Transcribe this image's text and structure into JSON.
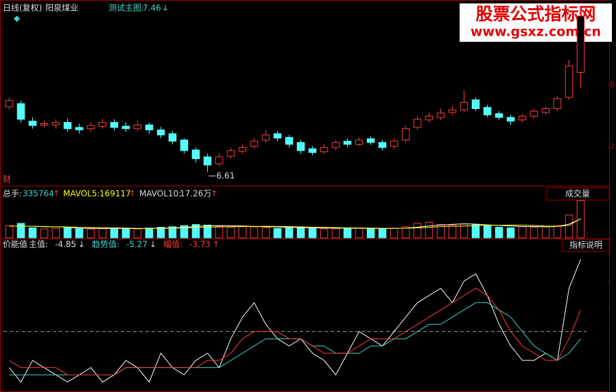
{
  "header": {
    "period": "日线(复权)",
    "stock": "阳泉煤业",
    "badge": "财",
    "vol_button": "成交量",
    "ind_button": "指标说明",
    "up_arrow": "↑",
    "down_arrow": "↓",
    "watermark_cn": "股票公式指标网",
    "watermark_url": "www.gsxz.com.cn"
  },
  "chart_data": [
    {
      "type": "candlestick",
      "title": "测试主图:",
      "current_value": 7.46,
      "up_color": "#ff3c3c",
      "down_color": "#54ffff",
      "open": [
        7.65,
        7.7,
        7.42,
        7.36,
        7.36,
        7.4,
        7.32,
        7.3,
        7.34,
        7.4,
        7.34,
        7.3,
        7.36,
        7.28,
        7.22,
        7.12,
        6.96,
        6.85,
        6.74,
        6.86,
        6.94,
        7.02,
        7.12,
        7.22,
        7.16,
        7.08,
        6.98,
        6.93,
        7.0,
        7.1,
        7.05,
        7.14,
        7.08,
        7.02,
        7.12,
        7.32,
        7.44,
        7.48,
        7.56,
        7.6,
        7.76,
        7.64,
        7.54,
        7.48,
        7.44,
        7.5,
        7.56,
        7.62,
        7.8,
        8.2
      ],
      "close": [
        7.75,
        7.45,
        7.35,
        7.38,
        7.4,
        7.3,
        7.28,
        7.35,
        7.4,
        7.32,
        7.3,
        7.36,
        7.28,
        7.2,
        7.1,
        6.95,
        6.82,
        6.72,
        6.85,
        6.95,
        7.0,
        7.1,
        7.2,
        7.15,
        7.05,
        6.95,
        6.92,
        7.0,
        7.08,
        7.05,
        7.12,
        7.08,
        7.0,
        7.1,
        7.3,
        7.45,
        7.5,
        7.55,
        7.6,
        7.72,
        7.62,
        7.52,
        7.48,
        7.42,
        7.5,
        7.58,
        7.62,
        7.78,
        8.3,
        9.1
      ],
      "high": [
        7.8,
        7.75,
        7.48,
        7.43,
        7.45,
        7.46,
        7.38,
        7.4,
        7.46,
        7.45,
        7.4,
        7.42,
        7.4,
        7.33,
        7.26,
        7.15,
        7.0,
        6.9,
        6.9,
        7.0,
        7.05,
        7.15,
        7.28,
        7.26,
        7.2,
        7.12,
        7.02,
        7.05,
        7.12,
        7.14,
        7.16,
        7.18,
        7.12,
        7.14,
        7.35,
        7.5,
        7.56,
        7.62,
        7.66,
        7.92,
        7.8,
        7.68,
        7.58,
        7.52,
        7.54,
        7.62,
        7.66,
        7.82,
        8.4,
        9.25
      ],
      "low": [
        7.6,
        7.4,
        7.3,
        7.32,
        7.3,
        7.25,
        7.22,
        7.25,
        7.3,
        7.27,
        7.25,
        7.26,
        7.22,
        7.15,
        7.05,
        6.9,
        6.76,
        6.61,
        6.7,
        6.82,
        6.9,
        6.98,
        7.08,
        7.1,
        7.0,
        6.9,
        6.88,
        6.9,
        6.96,
        7.0,
        7.02,
        7.04,
        6.95,
        6.98,
        7.08,
        7.28,
        7.4,
        7.44,
        7.52,
        7.56,
        7.58,
        7.48,
        7.44,
        7.36,
        7.4,
        7.46,
        7.52,
        7.58,
        7.76,
        7.95
      ],
      "low_marker_index": 17,
      "ylim": [
        6.4,
        9.3
      ],
      "yticks": [
        7,
        8
      ]
    },
    {
      "type": "bar",
      "title": "总手:",
      "values": [
        110000,
        130000,
        90000,
        80000,
        85000,
        95000,
        80000,
        78000,
        82000,
        90000,
        85000,
        80000,
        88000,
        95000,
        100000,
        110000,
        120000,
        115000,
        105000,
        95000,
        100000,
        98000,
        92000,
        85000,
        90000,
        95000,
        88000,
        80000,
        82000,
        90000,
        86000,
        84000,
        80000,
        85000,
        100000,
        130000,
        140000,
        120000,
        115000,
        125000,
        118000,
        105000,
        95000,
        90000,
        100000,
        95000,
        100000,
        110000,
        205000,
        335764
      ],
      "series": [
        {
          "name": "MAVOL5:",
          "color": "#ffffff",
          "values": [
            105000,
            105000,
            105000,
            100000,
            99000,
            96000,
            86000,
            86000,
            84000,
            85000,
            84000,
            83000,
            85000,
            87000,
            90000,
            94000,
            103000,
            108000,
            110000,
            109000,
            107000,
            103000,
            100000,
            98000,
            94000,
            92000,
            90000,
            88000,
            87000,
            87000,
            86000,
            84000,
            84000,
            85000,
            87000,
            96000,
            107000,
            115000,
            121000,
            126000,
            124000,
            117000,
            111000,
            107000,
            102000,
            101000,
            100000,
            102000,
            124000,
            169117
          ]
        },
        {
          "name": "MAVOL10:",
          "color": "#ffff00",
          "values": [
            105000,
            105000,
            104000,
            102000,
            100000,
            98000,
            95000,
            93000,
            91000,
            90000,
            88000,
            85000,
            85000,
            85000,
            87000,
            89000,
            93000,
            96000,
            98000,
            100000,
            102000,
            103000,
            104000,
            103000,
            102000,
            99000,
            96000,
            94000,
            92000,
            90000,
            89000,
            87000,
            86000,
            86000,
            87000,
            89000,
            95000,
            101000,
            104000,
            106000,
            110000,
            112000,
            113000,
            114000,
            114000,
            111000,
            106000,
            103000,
            112000,
            172600
          ],
          "value_labels_last": "17.26万"
        }
      ],
      "ylim": [
        0,
        340000
      ]
    },
    {
      "type": "line",
      "title": "价能值",
      "reference_line": 0,
      "ylim": [
        -8,
        11
      ],
      "series": [
        {
          "name": "主值:",
          "color": "#ffffff",
          "current": -4.85,
          "values": [
            -5,
            -7,
            -4,
            -5,
            -6,
            -7,
            -6,
            -5,
            -7,
            -6,
            -4,
            -5,
            -7,
            -3,
            -5,
            -6,
            -4,
            -3,
            -5,
            -1,
            2,
            4,
            1,
            -1,
            -2,
            -1,
            -3,
            -4,
            -6,
            -3,
            0,
            -1,
            -2,
            0,
            2,
            4,
            5,
            6,
            4,
            7,
            8,
            5,
            1,
            -2,
            -4,
            -4,
            -3,
            -4,
            6,
            10
          ]
        },
        {
          "name": "趋势值:",
          "color": "#3fd6c8",
          "current": -5.27,
          "values": [
            -6,
            -6,
            -6,
            -6,
            -6,
            -6,
            -6,
            -6,
            -6,
            -6,
            -5,
            -5,
            -5,
            -5,
            -5,
            -5,
            -5,
            -5,
            -5,
            -4,
            -3,
            -2,
            -1,
            -1,
            -1,
            -1,
            -2,
            -2,
            -3,
            -3,
            -3,
            -2,
            -2,
            -1,
            -1,
            0,
            1,
            1,
            2,
            3,
            4,
            4,
            3,
            2,
            0,
            -2,
            -3,
            -4,
            -3,
            -1
          ]
        },
        {
          "name": "幅值:",
          "color": "#ff3c3c",
          "current": -3.73,
          "values": [
            -4,
            -5,
            -5,
            -5,
            -5,
            -6,
            -6,
            -6,
            -6,
            -6,
            -5,
            -5,
            -5,
            -5,
            -5,
            -5,
            -5,
            -4,
            -4,
            -3,
            -1,
            0,
            0,
            0,
            -1,
            -1,
            -2,
            -3,
            -3,
            -3,
            -2,
            -1,
            -1,
            -1,
            0,
            1,
            2,
            3,
            4,
            5,
            6,
            5,
            3,
            0,
            -2,
            -3,
            -4,
            -4,
            -1,
            3
          ]
        }
      ]
    }
  ]
}
